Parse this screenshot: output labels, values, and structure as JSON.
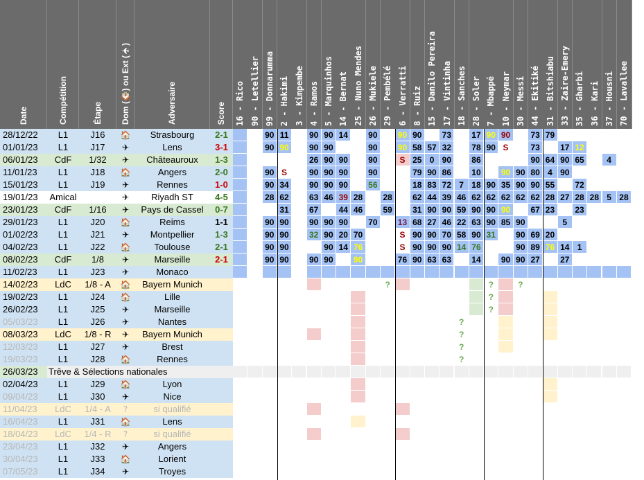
{
  "colors": {
    "header_bg": "#6b6b6b",
    "league": "#cfe2f3",
    "cup": "#d9ead3",
    "ucl": "#fff2cc",
    "break": "#efefef",
    "cell_blue": "#a4c2f4",
    "cell_light": "#cfe2f3",
    "cell_green": "#d9ead3",
    "cell_pink": "#f4cccc",
    "cell_yellow": "#fff2cc",
    "score_win": "#38761d",
    "score_loss": "#cc0000",
    "score_draw": "#000000",
    "num_yellow": "#ffff00",
    "num_red": "#990000",
    "num_green": "#38761d",
    "num_purple": "#741b47"
  },
  "headers": {
    "date": "Date",
    "competition": "Compétition",
    "stage": "Étape",
    "venue": "Dom (🏠) ou Ext (✈)",
    "opponent": "Adversaire",
    "score": "Score"
  },
  "players": [
    "16 - Rico",
    "90 - Letellier",
    "99 - Donnarumma",
    "2 - Hakimi",
    "3 - Kimpembe",
    "4 - Ramos",
    "5 - Marquinhos",
    "14 - Bernat",
    "25 - Nuno Mendes",
    "26 - Mukiele",
    "29 - Pembélé",
    "6 - Verratti",
    "8 - Ruiz",
    "15 - Danilo Pereira",
    "17 - Vintinha",
    "18 - Sanches",
    "28 - Soler",
    "7 - Mbappé",
    "10 - Neymar",
    "30 - Messi",
    "44 - Ekitiké",
    "31 - Bitshiabu",
    "33 - Zaire-Emery",
    "35 - Gharbi",
    "36 - Kari",
    "37 - Housni",
    "70 - Lavallee"
  ],
  "icons": {
    "home": "🏠",
    "away": "✈"
  },
  "matches": [
    {
      "date": "28/12/22",
      "comp": "L1",
      "stage": "J16",
      "venue": "home",
      "opp": "Strasbourg",
      "score": "2-1",
      "res": "w",
      "type": "L1"
    },
    {
      "date": "01/01/23",
      "comp": "L1",
      "stage": "J17",
      "venue": "away",
      "opp": "Lens",
      "score": "3-1",
      "res": "l",
      "type": "L1"
    },
    {
      "date": "06/01/23",
      "comp": "CdF",
      "stage": "1/32",
      "venue": "away",
      "opp": "Châteauroux",
      "score": "1-3",
      "res": "w",
      "type": "CdF"
    },
    {
      "date": "11/01/23",
      "comp": "L1",
      "stage": "J18",
      "venue": "home",
      "opp": "Angers",
      "score": "2-0",
      "res": "w",
      "type": "L1"
    },
    {
      "date": "15/01/23",
      "comp": "L1",
      "stage": "J19",
      "venue": "away",
      "opp": "Rennes",
      "score": "1-0",
      "res": "l",
      "type": "L1"
    },
    {
      "date": "19/01/23",
      "comp": "Amical",
      "stage": "",
      "venue": "away",
      "opp": "Riyadh ST",
      "score": "4-5",
      "res": "w",
      "type": "Amical"
    },
    {
      "date": "23/01/23",
      "comp": "CdF",
      "stage": "1/16",
      "venue": "away",
      "opp": "Pays de Cassel",
      "score": "0-7",
      "res": "w",
      "type": "CdF"
    },
    {
      "date": "29/01/23",
      "comp": "L1",
      "stage": "J20",
      "venue": "home",
      "opp": "Reims",
      "score": "1-1",
      "res": "d",
      "type": "L1"
    },
    {
      "date": "01/02/23",
      "comp": "L1",
      "stage": "J21",
      "venue": "away",
      "opp": "Montpellier",
      "score": "1-3",
      "res": "w",
      "type": "L1"
    },
    {
      "date": "04/02/23",
      "comp": "L1",
      "stage": "J22",
      "venue": "home",
      "opp": "Toulouse",
      "score": "2-1",
      "res": "w",
      "type": "L1"
    },
    {
      "date": "08/02/23",
      "comp": "CdF",
      "stage": "1/8",
      "venue": "away",
      "opp": "Marseille",
      "score": "2-1",
      "res": "l",
      "type": "CdF"
    },
    {
      "date": "11/02/23",
      "comp": "L1",
      "stage": "J23",
      "venue": "away",
      "opp": "Monaco",
      "score": "",
      "res": "",
      "type": "L1"
    },
    {
      "date": "14/02/23",
      "comp": "LdC",
      "stage": "1/8 - A",
      "venue": "home",
      "opp": "Bayern Munich",
      "score": "",
      "res": "",
      "type": "LdC"
    },
    {
      "date": "19/02/23",
      "comp": "L1",
      "stage": "J24",
      "venue": "home",
      "opp": "Lille",
      "score": "",
      "res": "",
      "type": "L1"
    },
    {
      "date": "26/02/23",
      "comp": "L1",
      "stage": "J25",
      "venue": "away",
      "opp": "Marseille",
      "score": "",
      "res": "",
      "type": "L1"
    },
    {
      "date": "05/03/23",
      "comp": "L1",
      "stage": "J26",
      "venue": "away",
      "opp": "Nantes",
      "score": "",
      "res": "",
      "type": "L1",
      "grey_date": true
    },
    {
      "date": "08/03/23",
      "comp": "LdC",
      "stage": "1/8 - R",
      "venue": "away",
      "opp": "Bayern Munich",
      "score": "",
      "res": "",
      "type": "LdC"
    },
    {
      "date": "12/03/23",
      "comp": "L1",
      "stage": "J27",
      "venue": "away",
      "opp": "Brest",
      "score": "",
      "res": "",
      "type": "L1",
      "grey_date": true
    },
    {
      "date": "19/03/23",
      "comp": "L1",
      "stage": "J28",
      "venue": "home",
      "opp": "Rennes",
      "score": "",
      "res": "",
      "type": "L1",
      "grey_date": true
    },
    {
      "date": "26/03/23",
      "comp": "Trêve & Sélections nationales",
      "stage": "",
      "venue": "",
      "opp": "",
      "score": "",
      "res": "",
      "type": "break"
    },
    {
      "date": "02/04/23",
      "comp": "L1",
      "stage": "J29",
      "venue": "home",
      "opp": "Lyon",
      "score": "",
      "res": "",
      "type": "L1"
    },
    {
      "date": "09/04/23",
      "comp": "L1",
      "stage": "J30",
      "venue": "away",
      "opp": "Nice",
      "score": "",
      "res": "",
      "type": "L1",
      "grey_date": true
    },
    {
      "date": "11/04/23",
      "comp": "LdC",
      "stage": "1/4 - A",
      "venue": "?",
      "opp": "si qualifié",
      "score": "",
      "res": "",
      "type": "LdC",
      "grey_all": true
    },
    {
      "date": "16/04/23",
      "comp": "L1",
      "stage": "J31",
      "venue": "home",
      "opp": "Lens",
      "score": "",
      "res": "",
      "type": "L1",
      "grey_date": true
    },
    {
      "date": "18/04/23",
      "comp": "LdC",
      "stage": "1/4 - R",
      "venue": "?",
      "opp": "si qualifié",
      "score": "",
      "res": "",
      "type": "LdC",
      "grey_all": true
    },
    {
      "date": "23/04/23",
      "comp": "L1",
      "stage": "J32",
      "venue": "away",
      "opp": "Angers",
      "score": "",
      "res": "",
      "type": "L1",
      "grey_date": true
    },
    {
      "date": "30/04/23",
      "comp": "L1",
      "stage": "J33",
      "venue": "home",
      "opp": "Lorient",
      "score": "",
      "res": "",
      "type": "L1",
      "grey_date": true
    },
    {
      "date": "07/05/23",
      "comp": "L1",
      "stage": "J34",
      "venue": "away",
      "opp": "Troyes",
      "score": "",
      "res": "",
      "type": "L1",
      "grey_date": true
    }
  ],
  "grid": [
    [
      "B",
      "",
      "B:90",
      "B:11",
      "",
      "B:90",
      "B:90",
      "B:14",
      "",
      "B:90",
      "",
      "B:90:Y",
      "B:90",
      "",
      "B:73",
      "",
      "B:17",
      "B:90:Y",
      "B:90:R",
      "",
      "B:73",
      "B:79",
      "",
      "",
      "",
      "",
      ""
    ],
    [
      "B",
      "",
      "B:90",
      "B:90:Y",
      "",
      "B:90",
      "B:90",
      "",
      "",
      "B:90",
      "",
      "B:90:Y",
      "B:58",
      "B:57",
      "B:32",
      "",
      "B:78",
      "B:90",
      "S",
      "",
      "B:73",
      "",
      "B:17",
      "B:12:Y",
      "",
      "",
      ""
    ],
    [
      "B",
      "",
      "",
      "",
      "",
      "B:26",
      "B:90",
      "B:90",
      "",
      "B:90",
      "",
      "S:R",
      "B:25",
      "B:0",
      "B:90",
      "",
      "B:86",
      "",
      "",
      "",
      "B:90",
      "B:64",
      "B:90",
      "B:65",
      "",
      "B:4",
      ""
    ],
    [
      "B",
      "",
      "B:90",
      "S",
      "",
      "B:90",
      "B:90",
      "B:90",
      "",
      "B:90",
      "",
      "",
      "B:79",
      "B:90",
      "B:86",
      "",
      "B:10",
      "",
      "B:90:Y",
      "B:90",
      "B:80",
      "B:4",
      "B:90",
      "",
      "",
      "",
      ""
    ],
    [
      "B",
      "",
      "B:90",
      "B:34",
      "",
      "B:90",
      "B:90",
      "B:90",
      "",
      "B:56:G",
      "",
      "",
      "B:18",
      "B:83",
      "B:72",
      "B:7",
      "B:18",
      "B:90",
      "B:35",
      "B:90",
      "B:90",
      "B:55",
      "",
      "B:72",
      "",
      "",
      ""
    ],
    [
      "B",
      "",
      "B:28",
      "B:62",
      "",
      "B:63",
      "B:46",
      "B:39:R",
      "B:28",
      "",
      "B:28",
      "",
      "B:62",
      "B:44",
      "B:39",
      "B:46",
      "B:62",
      "B:62",
      "B:62",
      "B:62",
      "B:62",
      "B:28",
      "B:27",
      "B:28",
      "B:28",
      "B:5",
      "B:28"
    ],
    [
      "B",
      "",
      "",
      "B:31",
      "",
      "B:67",
      "",
      "B:44",
      "B:46",
      "",
      "B:59",
      "",
      "B:31",
      "B:90",
      "B:90",
      "B:59",
      "B:90",
      "B:90",
      "B:90:Y",
      "",
      "B:67",
      "B:23",
      "",
      "B:23",
      "",
      "",
      ""
    ],
    [
      "B",
      "",
      "B:90",
      "B:90",
      "",
      "B:90",
      "B:90",
      "B:90",
      "",
      "B:70",
      "",
      "B:13:P",
      "B:68",
      "B:27",
      "B:46",
      "B:22",
      "B:63",
      "B:90",
      "B:85",
      "B:90",
      "",
      "",
      "B:5",
      "",
      "",
      "",
      ""
    ],
    [
      "B",
      "",
      "B:90",
      "B:90",
      "",
      "B:32:G",
      "B:90",
      "B:20",
      "B:70",
      "",
      "",
      "S",
      "B:90",
      "B:90",
      "B:70",
      "B:58",
      "B:90",
      "B:31:G",
      "",
      "B:90",
      "B:69",
      "B:20",
      "",
      "",
      "",
      "",
      ""
    ],
    [
      "B",
      "",
      "B:90",
      "B:90",
      "",
      "",
      "B:90",
      "B:14",
      "B:76:Y",
      "",
      "",
      "S",
      "B:90",
      "B:90",
      "B:90",
      "B:14:G",
      "B:76:G",
      "",
      "",
      "B:90",
      "B:89",
      "B:76:Y",
      "B:14",
      "B:1",
      "",
      "",
      ""
    ],
    [
      "B",
      "",
      "B:90",
      "B:90",
      "",
      "B:90",
      "B:90",
      "",
      "B:90:Y",
      "",
      "",
      "B:76",
      "B:90",
      "B:63",
      "B:63",
      "",
      "B:14",
      "",
      "B:90",
      "B:90",
      "B:27",
      "",
      "B:27",
      "",
      "",
      "",
      ""
    ],
    [
      "B",
      "",
      "B",
      "B",
      "",
      "B",
      "B",
      "B",
      "B",
      "B",
      "B",
      "B",
      "B",
      "B",
      "B",
      "B",
      "B",
      "B",
      "B",
      "B",
      "B",
      "B",
      "B",
      "B",
      "B",
      "B",
      "B"
    ],
    [
      "",
      "",
      "",
      "",
      "",
      "K",
      "",
      "",
      "",
      "",
      "?",
      "K",
      "",
      "",
      "",
      "",
      "G",
      "?",
      "K",
      "?",
      "",
      "",
      "",
      "",
      "",
      "",
      ""
    ],
    [
      "",
      "",
      "",
      "",
      "",
      "",
      "",
      "",
      "K",
      "",
      "",
      "",
      "",
      "",
      "",
      "",
      "G",
      "?",
      "K",
      "",
      "",
      "Y",
      "",
      "",
      "",
      "",
      ""
    ],
    [
      "",
      "",
      "",
      "",
      "",
      "",
      "",
      "",
      "K",
      "",
      "",
      "",
      "",
      "",
      "",
      "",
      "G",
      "?",
      "K",
      "",
      "",
      "Y",
      "",
      "",
      "",
      "",
      ""
    ],
    [
      "",
      "",
      "",
      "",
      "",
      "",
      "",
      "",
      "K",
      "",
      "",
      "",
      "",
      "",
      "",
      "?",
      "",
      "",
      "Y",
      "",
      "",
      "Y",
      "",
      "",
      "",
      "",
      ""
    ],
    [
      "",
      "",
      "",
      "",
      "",
      "K",
      "",
      "",
      "K",
      "",
      "",
      "",
      "",
      "",
      "",
      "?",
      "",
      "",
      "Y",
      "",
      "",
      "Y",
      "",
      "",
      "",
      "",
      ""
    ],
    [
      "",
      "",
      "",
      "",
      "",
      "",
      "",
      "",
      "K",
      "",
      "",
      "",
      "",
      "",
      "",
      "?",
      "",
      "",
      "Y",
      "",
      "",
      "",
      "",
      "",
      "",
      "",
      ""
    ],
    [
      "",
      "",
      "",
      "",
      "",
      "",
      "",
      "",
      "K",
      "",
      "",
      "",
      "",
      "",
      "",
      "?",
      "",
      "",
      "",
      "",
      "",
      "",
      "",
      "",
      "",
      "",
      ""
    ],
    [
      "X",
      "X",
      "X",
      "X",
      "X",
      "X",
      "X",
      "X",
      "X",
      "X",
      "X",
      "X",
      "X",
      "X",
      "X",
      "X",
      "X",
      "X",
      "X",
      "X",
      "X",
      "X",
      "X",
      "X",
      "X",
      "X",
      "X"
    ],
    [
      "",
      "",
      "",
      "",
      "",
      "",
      "",
      "",
      "K",
      "",
      "",
      "",
      "",
      "",
      "",
      "",
      "",
      "",
      "",
      "",
      "",
      "Y",
      "",
      "",
      "",
      "",
      ""
    ],
    [
      "",
      "",
      "",
      "",
      "",
      "",
      "",
      "",
      "K",
      "",
      "",
      "",
      "",
      "",
      "",
      "",
      "",
      "",
      "",
      "",
      "",
      "Y",
      "",
      "",
      "",
      "",
      ""
    ],
    [
      "",
      "",
      "",
      "",
      "",
      "K",
      "",
      "",
      "",
      "",
      "",
      "K",
      "",
      "",
      "",
      "",
      "",
      "",
      "",
      "",
      "",
      "",
      "",
      "",
      "",
      "",
      ""
    ],
    [
      "",
      "",
      "",
      "",
      "",
      "",
      "",
      "",
      "Y",
      "",
      "",
      "",
      "",
      "",
      "",
      "",
      "",
      "",
      "",
      "",
      "",
      "",
      "",
      "",
      "",
      "",
      ""
    ],
    [
      "",
      "",
      "",
      "",
      "",
      "K",
      "",
      "",
      "",
      "",
      "",
      "K",
      "",
      "",
      "",
      "",
      "",
      "",
      "",
      "",
      "",
      "",
      "",
      "",
      "",
      "",
      ""
    ],
    [
      "",
      "",
      "",
      "",
      "",
      "",
      "",
      "",
      "",
      "",
      "",
      "",
      "",
      "",
      "",
      "",
      "",
      "",
      "",
      "",
      "",
      "",
      "",
      "",
      "",
      "",
      ""
    ],
    [
      "",
      "",
      "",
      "",
      "",
      "",
      "",
      "",
      "",
      "",
      "",
      "",
      "",
      "",
      "",
      "",
      "",
      "",
      "",
      "",
      "",
      "",
      "",
      "",
      "",
      "",
      ""
    ],
    [
      "",
      "",
      "",
      "",
      "",
      "",
      "",
      "",
      "",
      "",
      "",
      "",
      "",
      "",
      "",
      "",
      "",
      "",
      "",
      "",
      "",
      "",
      "",
      "",
      "",
      "",
      ""
    ]
  ]
}
